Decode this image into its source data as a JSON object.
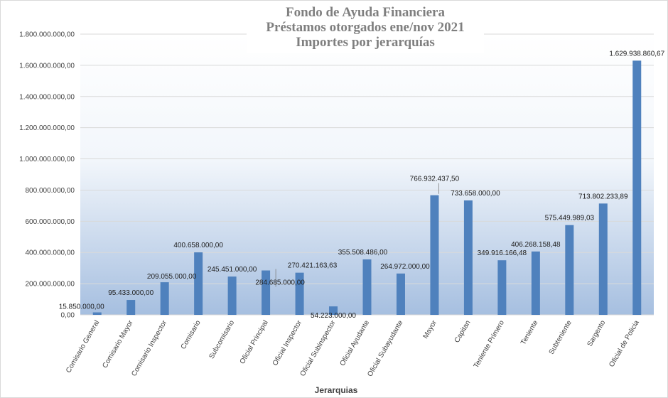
{
  "chart_data": {
    "type": "bar",
    "title": [
      "Fondo de Ayuda Financiera",
      "Préstamos otorgados ene/nov 2021",
      "Importes por jerarquías"
    ],
    "xlabel": "Jerarquias",
    "ylabel": "",
    "ylim": [
      0,
      1800000000
    ],
    "y_tick_labels": [
      "0,00",
      "200.000.000,00",
      "400.000.000,00",
      "600.000.000,00",
      "800.000.000,00",
      "1.000.000.000,00",
      "1.200.000.000,00",
      "1.400.000.000,00",
      "1.600.000.000,00",
      "1.800.000.000,00"
    ],
    "categories": [
      "Comisario General",
      "Comisario Mayor",
      "Comisario Inspector",
      "Comisario",
      "Subcomisario",
      "Oficial Principal",
      "Oficial Inspector",
      "Oficial Subinspector",
      "Oficial Ayudante",
      "Oficial Subayudante",
      "Mayor",
      "Capitan",
      "Teniente Primero",
      "Teniente",
      "Subteniente",
      "Sargento",
      "Oficial de Policia"
    ],
    "values": [
      15850000.0,
      95433000.0,
      209055000.0,
      400658000.0,
      245451000.0,
      284685000.0,
      270421163.63,
      54223000.0,
      355508486.0,
      264972000.0,
      766932437.5,
      733658000.0,
      349916166.48,
      406268158.48,
      575449989.03,
      713802233.89,
      1629938860.67
    ],
    "value_labels": [
      "15.850.000,00",
      "95.433.000,00",
      "209.055.000,00",
      "400.658.000,00",
      "245.451.000,00",
      "284.685.000,00",
      "270.421.163,63",
      "54.223.000,00",
      "355.508.486,00",
      "264.972.000,00",
      "766.932.437,50",
      "733.658.000,00",
      "349.916.166,48",
      "406.268.158,48",
      "575.449.989,03",
      "713.802.233,89",
      "1.629.938.860,67"
    ],
    "grid": true,
    "legend": "none",
    "colors": {
      "bar": "#4f81bd",
      "gridline": "#d9d9d9",
      "plot_gradient_top": "#ffffff",
      "plot_gradient_bottom": "#a6bfe0"
    }
  }
}
